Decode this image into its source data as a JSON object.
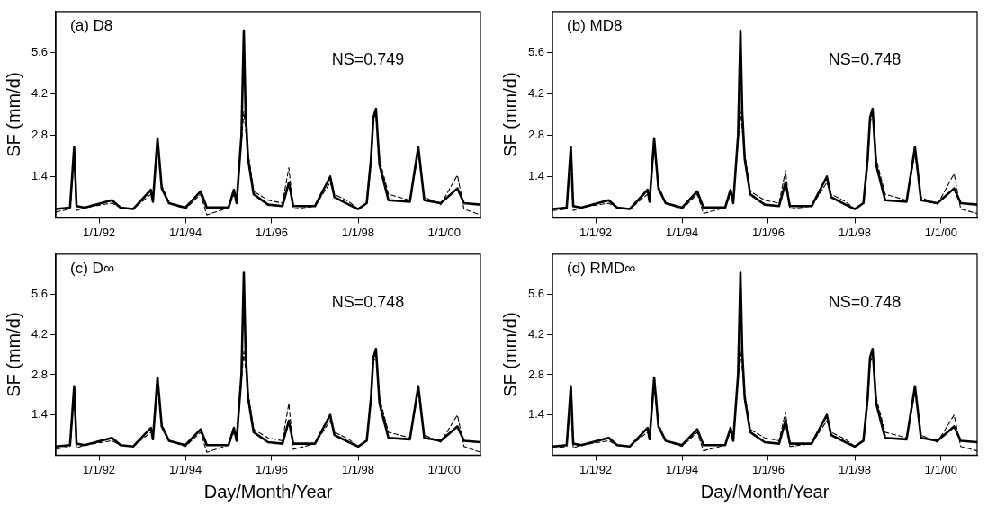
{
  "chart_data": [
    {
      "type": "line",
      "title": "(a) D8",
      "ylabel": "SF (mm/d)",
      "annotations": [
        "NS=0.749"
      ],
      "marker": "none",
      "xlim": [
        "1991-01-01",
        "2000-11-01"
      ],
      "ylim": [
        0,
        7
      ],
      "yticks": [
        1.4,
        2.8,
        4.2,
        5.6
      ],
      "xticks": [
        {
          "value": "1992-01-01",
          "label": "1/1/92"
        },
        {
          "value": "1994-01-01",
          "label": "1/1/94"
        },
        {
          "value": "1996-01-01",
          "label": "1/1/96"
        },
        {
          "value": "1998-01-01",
          "label": "1/1/98"
        },
        {
          "value": "2000-01-01",
          "label": "1/1/00"
        }
      ],
      "x": [
        "1991-01-01",
        "1991-05-01",
        "1991-06-05",
        "1991-06-25",
        "1991-09-01",
        "1992-04-20",
        "1992-07-01",
        "1992-10-15",
        "1993-03-15",
        "1993-04-01",
        "1993-05-10",
        "1993-06-15",
        "1993-08-15",
        "1994-01-01",
        "1994-05-10",
        "1994-07-01",
        "1995-01-01",
        "1995-02-15",
        "1995-03-10",
        "1995-04-20",
        "1995-05-10",
        "1995-05-25",
        "1995-06-15",
        "1995-08-01",
        "1995-12-01",
        "1996-04-01",
        "1996-05-25",
        "1996-07-01",
        "1997-01-01",
        "1997-05-10",
        "1997-06-15",
        "1997-10-15",
        "1998-01-01",
        "1998-03-15",
        "1998-04-20",
        "1998-05-10",
        "1998-06-01",
        "1998-07-01",
        "1998-09-15",
        "1999-03-15",
        "1999-05-25",
        "1999-07-15",
        "1999-12-01",
        "2000-04-20",
        "2000-06-15",
        "2000-11-01"
      ],
      "series": [
        {
          "color": "#000000",
          "line_style": "solid",
          "values": [
            0.3,
            0.35,
            2.4,
            0.4,
            0.35,
            0.6,
            0.35,
            0.3,
            0.95,
            0.55,
            2.7,
            1.0,
            0.5,
            0.35,
            0.9,
            0.35,
            0.35,
            0.95,
            0.5,
            2.8,
            6.35,
            3.6,
            2.0,
            0.8,
            0.45,
            0.4,
            1.2,
            0.4,
            0.4,
            1.4,
            0.7,
            0.45,
            0.3,
            0.5,
            2.0,
            3.4,
            3.7,
            1.8,
            0.6,
            0.55,
            2.4,
            0.6,
            0.5,
            1.0,
            0.5,
            0.45
          ]
        },
        {
          "color": "#000000",
          "line_style": "dashed",
          "values": [
            0.2,
            0.3,
            2.0,
            0.25,
            0.35,
            0.5,
            0.35,
            0.3,
            0.8,
            0.6,
            2.4,
            1.1,
            0.5,
            0.3,
            0.8,
            0.1,
            0.35,
            0.8,
            0.6,
            2.6,
            3.6,
            3.0,
            2.2,
            0.9,
            0.6,
            0.5,
            1.7,
            0.3,
            0.4,
            1.2,
            0.8,
            0.55,
            0.3,
            0.5,
            1.8,
            3.2,
            3.5,
            2.0,
            0.8,
            0.6,
            2.2,
            0.7,
            0.45,
            1.45,
            0.3,
            0.1
          ]
        }
      ]
    },
    {
      "type": "line",
      "title": "(b) MD8",
      "ylabel": "SF (mm/d)",
      "annotations": [
        "NS=0.748"
      ],
      "marker": "none",
      "xlim": [
        "1991-01-01",
        "2000-11-01"
      ],
      "ylim": [
        0,
        7
      ],
      "yticks": [
        1.4,
        2.8,
        4.2,
        5.6
      ],
      "xticks": [
        {
          "value": "1992-01-01",
          "label": "1/1/92"
        },
        {
          "value": "1994-01-01",
          "label": "1/1/94"
        },
        {
          "value": "1996-01-01",
          "label": "1/1/96"
        },
        {
          "value": "1998-01-01",
          "label": "1/1/98"
        },
        {
          "value": "2000-01-01",
          "label": "1/1/00"
        }
      ],
      "x": [
        "1991-01-01",
        "1991-05-01",
        "1991-06-05",
        "1991-06-25",
        "1991-09-01",
        "1992-04-20",
        "1992-07-01",
        "1992-10-15",
        "1993-03-15",
        "1993-04-01",
        "1993-05-10",
        "1993-06-15",
        "1993-08-15",
        "1994-01-01",
        "1994-05-10",
        "1994-07-01",
        "1995-01-01",
        "1995-02-15",
        "1995-03-10",
        "1995-04-20",
        "1995-05-10",
        "1995-05-25",
        "1995-06-15",
        "1995-08-01",
        "1995-12-01",
        "1996-04-01",
        "1996-05-25",
        "1996-07-01",
        "1997-01-01",
        "1997-05-10",
        "1997-06-15",
        "1997-10-15",
        "1998-01-01",
        "1998-03-15",
        "1998-04-20",
        "1998-05-10",
        "1998-06-01",
        "1998-07-01",
        "1998-09-15",
        "1999-03-15",
        "1999-05-25",
        "1999-07-15",
        "1999-12-01",
        "2000-04-20",
        "2000-06-15",
        "2000-11-01"
      ],
      "series": [
        {
          "color": "#000000",
          "line_style": "solid",
          "values": [
            0.3,
            0.35,
            2.4,
            0.4,
            0.35,
            0.6,
            0.35,
            0.3,
            0.95,
            0.55,
            2.7,
            1.0,
            0.5,
            0.35,
            0.9,
            0.35,
            0.35,
            0.95,
            0.5,
            2.8,
            6.35,
            3.6,
            2.0,
            0.8,
            0.45,
            0.4,
            1.2,
            0.4,
            0.4,
            1.4,
            0.7,
            0.45,
            0.3,
            0.5,
            2.0,
            3.4,
            3.7,
            1.8,
            0.6,
            0.55,
            2.4,
            0.6,
            0.5,
            1.0,
            0.5,
            0.45
          ]
        },
        {
          "color": "#000000",
          "line_style": "dashed",
          "values": [
            0.25,
            0.3,
            2.0,
            0.25,
            0.35,
            0.5,
            0.35,
            0.3,
            0.8,
            0.6,
            2.4,
            1.1,
            0.5,
            0.3,
            0.8,
            0.15,
            0.35,
            0.8,
            0.6,
            2.6,
            3.6,
            3.0,
            2.2,
            0.9,
            0.6,
            0.5,
            1.6,
            0.3,
            0.4,
            1.2,
            0.8,
            0.55,
            0.3,
            0.5,
            1.8,
            3.2,
            3.5,
            2.0,
            0.8,
            0.6,
            2.2,
            0.7,
            0.45,
            1.5,
            0.3,
            0.15
          ]
        }
      ]
    },
    {
      "type": "line",
      "title": "(c) D∞",
      "ylabel": "SF (mm/d)",
      "xlabel": "Day/Month/Year",
      "annotations": [
        "NS=0.748"
      ],
      "marker": "none",
      "xlim": [
        "1991-01-01",
        "2000-11-01"
      ],
      "ylim": [
        0,
        7
      ],
      "yticks": [
        1.4,
        2.8,
        4.2,
        5.6
      ],
      "xticks": [
        {
          "value": "1992-01-01",
          "label": "1/1/92"
        },
        {
          "value": "1994-01-01",
          "label": "1/1/94"
        },
        {
          "value": "1996-01-01",
          "label": "1/1/96"
        },
        {
          "value": "1998-01-01",
          "label": "1/1/98"
        },
        {
          "value": "2000-01-01",
          "label": "1/1/00"
        }
      ],
      "x": [
        "1991-01-01",
        "1991-05-01",
        "1991-06-05",
        "1991-06-25",
        "1991-09-01",
        "1992-04-20",
        "1992-07-01",
        "1992-10-15",
        "1993-03-15",
        "1993-04-01",
        "1993-05-10",
        "1993-06-15",
        "1993-08-15",
        "1994-01-01",
        "1994-05-10",
        "1994-07-01",
        "1995-01-01",
        "1995-02-15",
        "1995-03-10",
        "1995-04-20",
        "1995-05-10",
        "1995-05-25",
        "1995-06-15",
        "1995-08-01",
        "1995-12-01",
        "1996-04-01",
        "1996-05-25",
        "1996-07-01",
        "1997-01-01",
        "1997-05-10",
        "1997-06-15",
        "1997-10-15",
        "1998-01-01",
        "1998-03-15",
        "1998-04-20",
        "1998-05-10",
        "1998-06-01",
        "1998-07-01",
        "1998-09-15",
        "1999-03-15",
        "1999-05-25",
        "1999-07-15",
        "1999-12-01",
        "2000-04-20",
        "2000-06-15",
        "2000-11-01"
      ],
      "series": [
        {
          "color": "#000000",
          "line_style": "solid",
          "values": [
            0.3,
            0.35,
            2.4,
            0.4,
            0.35,
            0.6,
            0.35,
            0.3,
            0.95,
            0.55,
            2.7,
            1.0,
            0.5,
            0.35,
            0.9,
            0.35,
            0.35,
            0.95,
            0.5,
            2.8,
            6.35,
            3.6,
            2.0,
            0.8,
            0.45,
            0.4,
            1.2,
            0.4,
            0.4,
            1.4,
            0.7,
            0.45,
            0.3,
            0.5,
            2.0,
            3.4,
            3.7,
            1.8,
            0.6,
            0.55,
            2.4,
            0.6,
            0.5,
            1.0,
            0.5,
            0.45
          ]
        },
        {
          "color": "#000000",
          "line_style": "dashed",
          "values": [
            0.2,
            0.3,
            2.0,
            0.25,
            0.35,
            0.5,
            0.35,
            0.3,
            0.8,
            0.6,
            2.4,
            1.1,
            0.5,
            0.3,
            0.8,
            0.1,
            0.35,
            0.8,
            0.6,
            2.6,
            3.6,
            3.0,
            2.2,
            0.9,
            0.6,
            0.5,
            1.8,
            0.2,
            0.4,
            1.2,
            0.8,
            0.55,
            0.3,
            0.5,
            1.8,
            3.2,
            3.5,
            2.0,
            0.8,
            0.6,
            2.2,
            0.7,
            0.45,
            1.4,
            0.3,
            0.1
          ]
        }
      ]
    },
    {
      "type": "line",
      "title": "(d) RMD∞",
      "ylabel": "SF (mm/d)",
      "xlabel": "Day/Month/Year",
      "annotations": [
        "NS=0.748"
      ],
      "marker": "none",
      "xlim": [
        "1991-01-01",
        "2000-11-01"
      ],
      "ylim": [
        0,
        7
      ],
      "yticks": [
        1.4,
        2.8,
        4.2,
        5.6
      ],
      "xticks": [
        {
          "value": "1992-01-01",
          "label": "1/1/92"
        },
        {
          "value": "1994-01-01",
          "label": "1/1/94"
        },
        {
          "value": "1996-01-01",
          "label": "1/1/96"
        },
        {
          "value": "1998-01-01",
          "label": "1/1/98"
        },
        {
          "value": "2000-01-01",
          "label": "1/1/00"
        }
      ],
      "x": [
        "1991-01-01",
        "1991-05-01",
        "1991-06-05",
        "1991-06-25",
        "1991-09-01",
        "1992-04-20",
        "1992-07-01",
        "1992-10-15",
        "1993-03-15",
        "1993-04-01",
        "1993-05-10",
        "1993-06-15",
        "1993-08-15",
        "1994-01-01",
        "1994-05-10",
        "1994-07-01",
        "1995-01-01",
        "1995-02-15",
        "1995-03-10",
        "1995-04-20",
        "1995-05-10",
        "1995-05-25",
        "1995-06-15",
        "1995-08-01",
        "1995-12-01",
        "1996-04-01",
        "1996-05-25",
        "1996-07-01",
        "1997-01-01",
        "1997-05-10",
        "1997-06-15",
        "1997-10-15",
        "1998-01-01",
        "1998-03-15",
        "1998-04-20",
        "1998-05-10",
        "1998-06-01",
        "1998-07-01",
        "1998-09-15",
        "1999-03-15",
        "1999-05-25",
        "1999-07-15",
        "1999-12-01",
        "2000-04-20",
        "2000-06-15",
        "2000-11-01"
      ],
      "series": [
        {
          "color": "#000000",
          "line_style": "solid",
          "values": [
            0.3,
            0.35,
            2.4,
            0.4,
            0.35,
            0.6,
            0.35,
            0.3,
            0.95,
            0.55,
            2.7,
            1.0,
            0.5,
            0.35,
            0.9,
            0.35,
            0.35,
            0.95,
            0.5,
            2.8,
            6.35,
            3.6,
            2.0,
            0.8,
            0.45,
            0.4,
            1.2,
            0.4,
            0.4,
            1.4,
            0.7,
            0.45,
            0.3,
            0.5,
            2.0,
            3.4,
            3.7,
            1.8,
            0.6,
            0.55,
            2.4,
            0.6,
            0.5,
            1.0,
            0.5,
            0.45
          ]
        },
        {
          "color": "#000000",
          "line_style": "dashed",
          "values": [
            0.25,
            0.3,
            2.0,
            0.25,
            0.35,
            0.5,
            0.35,
            0.3,
            0.8,
            0.6,
            2.4,
            1.1,
            0.5,
            0.3,
            0.8,
            0.15,
            0.35,
            0.8,
            0.6,
            2.6,
            3.6,
            3.0,
            2.2,
            0.9,
            0.6,
            0.5,
            1.5,
            0.3,
            0.4,
            1.2,
            0.8,
            0.55,
            0.3,
            0.5,
            1.8,
            3.2,
            3.5,
            2.0,
            0.8,
            0.6,
            2.2,
            0.7,
            0.45,
            1.4,
            0.3,
            0.15
          ]
        }
      ]
    }
  ]
}
